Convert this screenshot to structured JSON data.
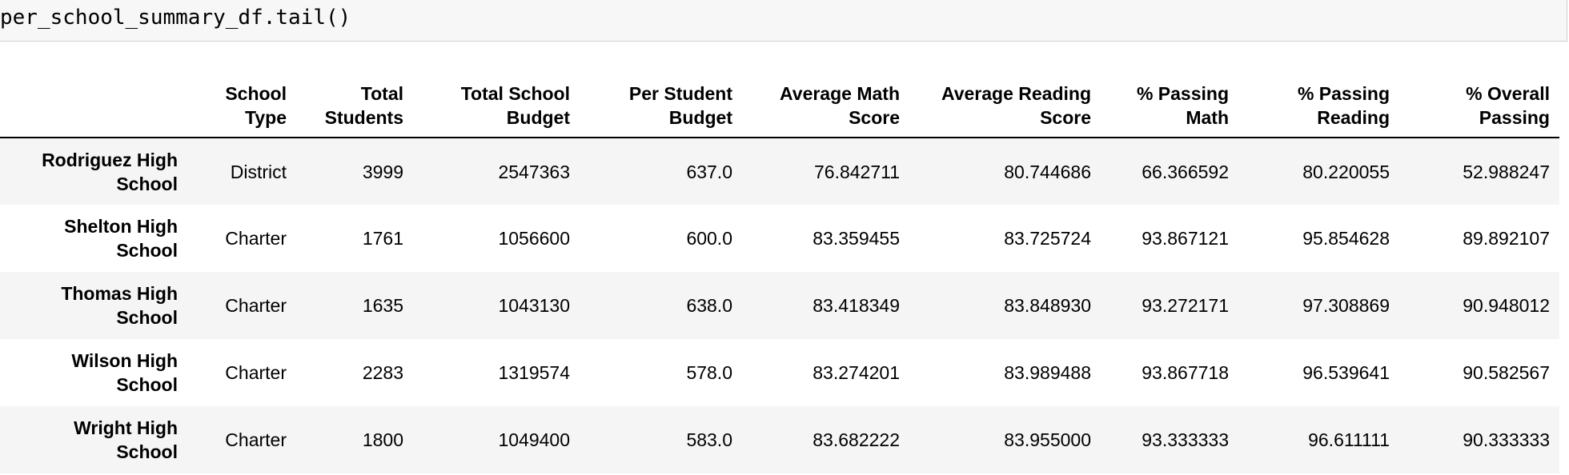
{
  "cell": {
    "code": "per_school_summary_df.tail()"
  },
  "table": {
    "index_header": "",
    "columns": [
      "School Type",
      "Total Students",
      "Total School Budget",
      "Per Student Budget",
      "Average Math Score",
      "Average Reading Score",
      "% Passing Math",
      "% Passing Reading",
      "% Overall Passing"
    ],
    "rows": [
      {
        "index": "Rodriguez High School",
        "values": [
          "District",
          "3999",
          "2547363",
          "637.0",
          "76.842711",
          "80.744686",
          "66.366592",
          "80.220055",
          "52.988247"
        ]
      },
      {
        "index": "Shelton High School",
        "values": [
          "Charter",
          "1761",
          "1056600",
          "600.0",
          "83.359455",
          "83.725724",
          "93.867121",
          "95.854628",
          "89.892107"
        ]
      },
      {
        "index": "Thomas High School",
        "values": [
          "Charter",
          "1635",
          "1043130",
          "638.0",
          "83.418349",
          "83.848930",
          "93.272171",
          "97.308869",
          "90.948012"
        ]
      },
      {
        "index": "Wilson High School",
        "values": [
          "Charter",
          "2283",
          "1319574",
          "578.0",
          "83.274201",
          "83.989488",
          "93.867718",
          "96.539641",
          "90.582567"
        ]
      },
      {
        "index": "Wright High School",
        "values": [
          "Charter",
          "1800",
          "1049400",
          "583.0",
          "83.682222",
          "83.955000",
          "93.333333",
          "96.611111",
          "90.333333"
        ]
      }
    ]
  },
  "colors": {
    "input_background": "#f7f7f7",
    "input_border": "#cfcfcf",
    "row_stripe": "#f5f5f5",
    "header_rule": "#000000"
  }
}
